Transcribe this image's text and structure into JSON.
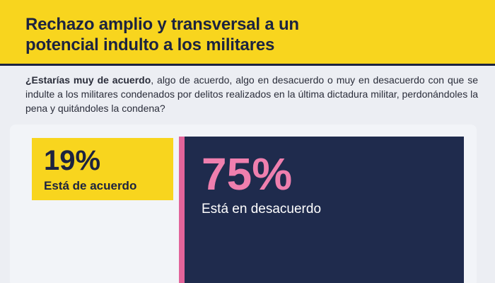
{
  "header": {
    "title_line1": "Rechazo amplio y transversal a un",
    "title_line2": "potencial indulto a los militares"
  },
  "question": {
    "bold": "¿Estarías muy de acuerdo",
    "rest": ", algo de acuerdo, algo en desacuerdo o muy en desacuerdo con que se indulte a los militares condenados por delitos realizados en la última dictadura militar, perdonándoles la pena y quitándoles la condena?"
  },
  "chart_data": {
    "type": "bar",
    "categories": [
      "Está de acuerdo",
      "Está en desacuerdo"
    ],
    "values": [
      19,
      75
    ],
    "value_labels": [
      "19%",
      "75%"
    ],
    "unit": "%"
  },
  "colors": {
    "yellow": "#f8d51e",
    "navy": "#1f2b4d",
    "pink": "#ef7fae"
  }
}
